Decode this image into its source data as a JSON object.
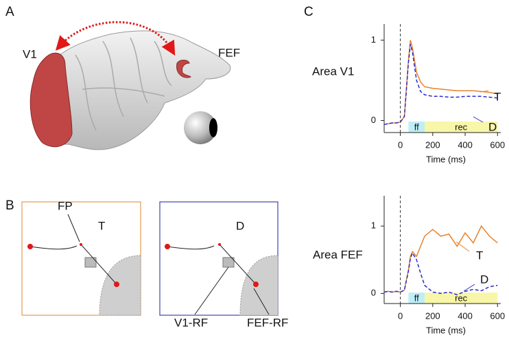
{
  "figure": {
    "panel_labels": [
      "A",
      "B",
      "C"
    ],
    "brain_labels": [
      "V1",
      "FEF"
    ],
    "task_labels": {
      "fixation": "FP",
      "left_target": "T",
      "right_target": "D",
      "rf_labels": [
        "V1-RF",
        "FEF-RF"
      ]
    }
  },
  "chart_data": [
    {
      "type": "line",
      "ylabel": "Area V1",
      "xlabel": "Time (ms)",
      "x": [
        -100,
        -75,
        -50,
        -25,
        0,
        25,
        50,
        62,
        75,
        100,
        125,
        150,
        200,
        250,
        300,
        350,
        400,
        450,
        500,
        550,
        600
      ],
      "series": [
        {
          "name": "T",
          "color": "#e8822a",
          "style": "solid",
          "values": [
            -0.05,
            -0.04,
            -0.03,
            -0.03,
            -0.02,
            0.05,
            0.75,
            1.0,
            0.9,
            0.6,
            0.48,
            0.42,
            0.4,
            0.39,
            0.38,
            0.37,
            0.37,
            0.37,
            0.36,
            0.35,
            0.33
          ]
        },
        {
          "name": "D",
          "color": "#2a2ad0",
          "style": "dashed",
          "values": [
            -0.05,
            -0.04,
            -0.03,
            -0.03,
            -0.02,
            0.05,
            0.72,
            0.95,
            0.85,
            0.5,
            0.36,
            0.32,
            0.3,
            0.3,
            0.29,
            0.29,
            0.3,
            0.3,
            0.3,
            0.29,
            0.28
          ]
        }
      ],
      "epochs": [
        {
          "label": "ff",
          "start": 50,
          "end": 150,
          "color": "#bfeef6"
        },
        {
          "label": "rec",
          "start": 150,
          "end": 600,
          "color": "#f8f6a8"
        }
      ],
      "vline": 0,
      "xlim": [
        -100,
        620
      ],
      "ylim": [
        -0.15,
        1.2
      ],
      "xticks": [
        0,
        200,
        400,
        600
      ],
      "yticks": [
        0,
        1
      ]
    },
    {
      "type": "line",
      "ylabel": "Area FEF",
      "xlabel": "Time (ms)",
      "x": [
        -100,
        -75,
        -50,
        -25,
        0,
        25,
        50,
        62,
        75,
        100,
        125,
        150,
        200,
        250,
        300,
        350,
        400,
        450,
        500,
        550,
        600
      ],
      "series": [
        {
          "name": "T",
          "color": "#e8822a",
          "style": "solid",
          "values": [
            0.02,
            0.03,
            0.02,
            0.03,
            0.02,
            0.05,
            0.35,
            0.55,
            0.62,
            0.55,
            0.7,
            0.85,
            0.95,
            0.85,
            0.88,
            0.7,
            0.9,
            0.75,
            1.0,
            0.85,
            0.75
          ]
        },
        {
          "name": "D",
          "color": "#2a2ad0",
          "style": "dashed",
          "values": [
            0.02,
            0.03,
            0.02,
            0.03,
            0.02,
            0.05,
            0.33,
            0.52,
            0.6,
            0.5,
            0.3,
            0.12,
            0.02,
            0.0,
            0.02,
            -0.02,
            0.03,
            0.06,
            0.04,
            0.1,
            0.12
          ]
        }
      ],
      "epochs": [
        {
          "label": "ff",
          "start": 50,
          "end": 150,
          "color": "#bfeef6"
        },
        {
          "label": "rec",
          "start": 150,
          "end": 600,
          "color": "#f8f6a8"
        }
      ],
      "vline": 0,
      "xlim": [
        -100,
        620
      ],
      "ylim": [
        -0.15,
        1.45
      ],
      "xticks": [
        0,
        200,
        400,
        600
      ],
      "yticks": [
        0,
        1
      ]
    }
  ]
}
